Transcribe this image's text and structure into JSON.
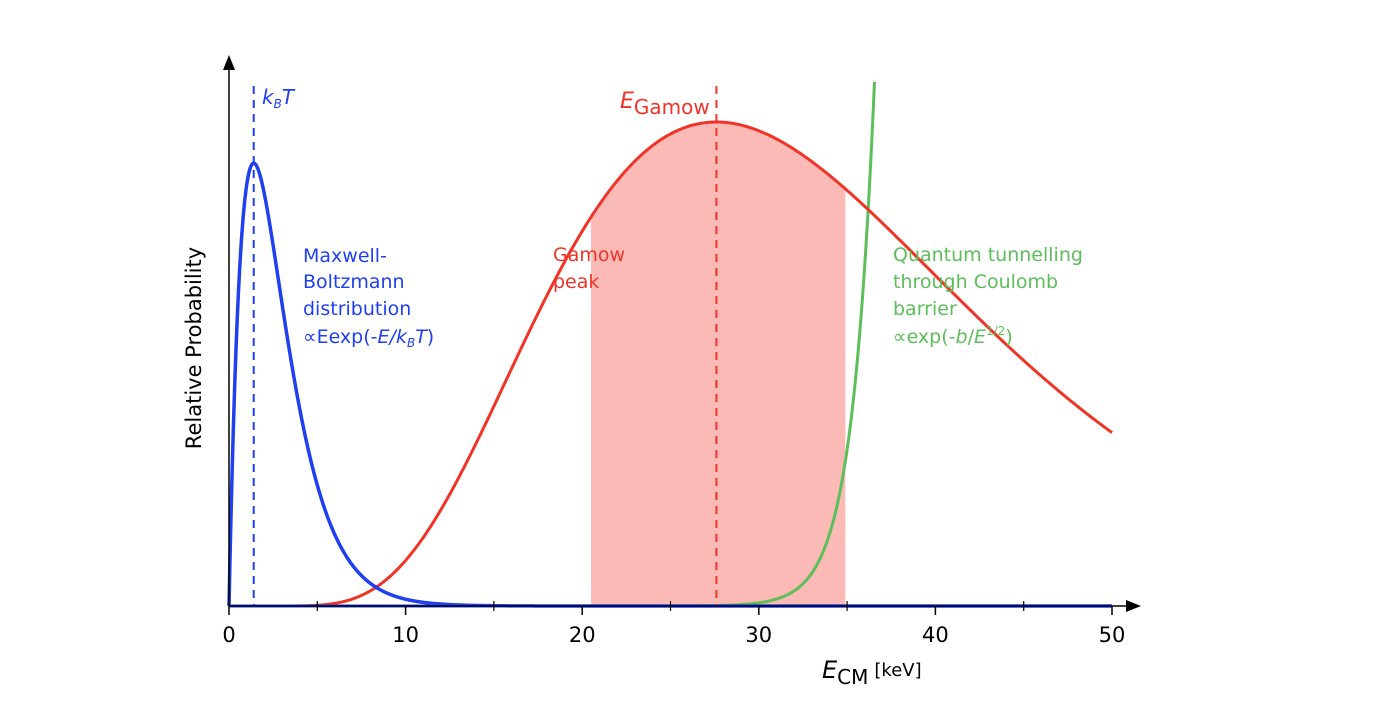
{
  "chart_data": {
    "type": "line",
    "ylabel": "Relative Probability",
    "xlabel": {
      "main": "E",
      "sub": "CM",
      "unit": "[keV]"
    },
    "xlim": [
      0,
      50
    ],
    "x_ticks": [
      0,
      10,
      20,
      30,
      40,
      50
    ],
    "x_minor_ticks": [
      5,
      15,
      25,
      35,
      45
    ],
    "series": [
      {
        "key": "mb",
        "color": "#1f3ff0",
        "kT": 1.4,
        "peak_rel": 0.915
      },
      {
        "key": "gamow",
        "color": "#f03428",
        "peak_x": 27.6,
        "peak_rel": 1.0,
        "shade_from": 20.5,
        "shade_to": 34.9,
        "shade_color": "#fbbab6"
      },
      {
        "key": "tunnel",
        "color": "#5cbf5a"
      }
    ],
    "annotations": {
      "kbt": {
        "k": "k",
        "ksub": "B",
        "t": "T"
      },
      "egamow": {
        "e": "E",
        "sub": "Gamow"
      },
      "mb_text": [
        "Maxwell-",
        "Boltzmann",
        "distribution"
      ],
      "mb_formula": {
        "prefix": "∝Eexp(-",
        "e": "E",
        "slash": "/",
        "k": "k",
        "ksub": "B",
        "t": "T",
        "close": ")"
      },
      "gamow_text": [
        "Gamow",
        "peak"
      ],
      "tunnel_text": [
        "Quantum tunnelling",
        "through Coulomb",
        "barrier"
      ],
      "tunnel_formula": {
        "prefix": "∝exp(-",
        "b": "b",
        "slash": "/",
        "e": "E",
        "sup": "1/2",
        "close": ")"
      }
    },
    "colors": {
      "mb": "#1f3ff0",
      "gamow": "#f03428",
      "tunnel": "#5cbf5a",
      "axis": "#000000"
    }
  }
}
